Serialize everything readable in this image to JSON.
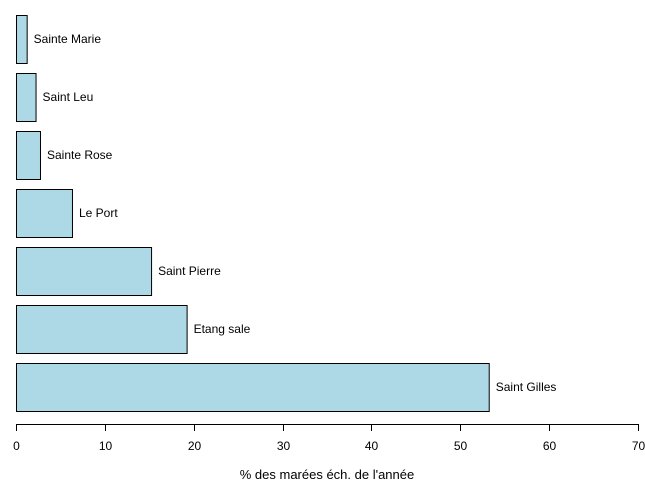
{
  "chart_data": {
    "type": "bar",
    "orientation": "horizontal",
    "categories": [
      "Sainte Marie",
      "Saint Leu",
      "Sainte Rose",
      "Le Port",
      "Saint Pierre",
      "Etang sale",
      "Saint Gilles"
    ],
    "values": [
      1.2,
      2.2,
      2.7,
      6.3,
      15.2,
      19.2,
      53.2
    ],
    "xlabel": "% des marées éch. de l'année",
    "xlim": [
      0,
      70
    ],
    "xticks": [
      "0",
      "10",
      "20",
      "30",
      "40",
      "50",
      "60",
      "70"
    ],
    "grid": false,
    "bar_color": "#add8e6",
    "bar_edge_color": "#000000"
  }
}
